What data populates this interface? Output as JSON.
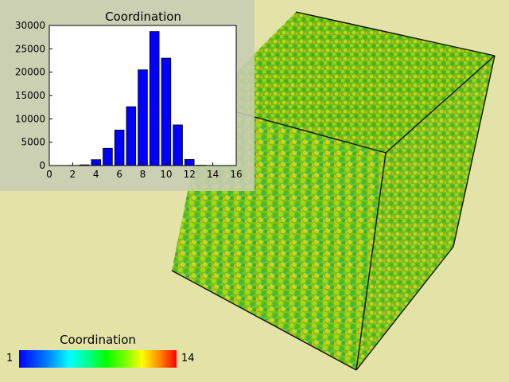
{
  "chart_data": {
    "type": "bar",
    "title": "Coordination",
    "x": [
      1,
      2,
      3,
      4,
      5,
      6,
      7,
      8,
      9,
      10,
      11,
      12,
      13,
      14
    ],
    "values": [
      10,
      30,
      150,
      1250,
      3700,
      7600,
      12600,
      20500,
      28700,
      23000,
      8700,
      1300,
      60,
      5
    ],
    "xlim": [
      0,
      16
    ],
    "ylim": [
      0,
      30000
    ],
    "xticks": [
      "0",
      "2",
      "4",
      "6",
      "8",
      "10",
      "12",
      "14",
      "16"
    ],
    "yticks": [
      "0",
      "5000",
      "10000",
      "15000",
      "20000",
      "25000",
      "30000"
    ],
    "bar_color": "#0000ff",
    "grid": false
  },
  "legend": {
    "title": "Coordination",
    "min_label": "1",
    "max_label": "14",
    "colormap": "rainbow"
  },
  "colors": {
    "background": "#e3e3a8",
    "panel": "#c8cdb4"
  }
}
